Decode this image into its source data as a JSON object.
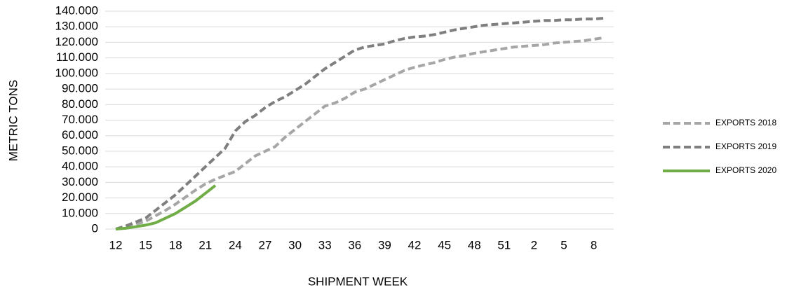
{
  "chart_data": {
    "type": "line",
    "x_label": "SHIPMENT WEEK",
    "y_label": "METRIC TONS",
    "categories": [
      "12",
      null,
      null,
      "15",
      null,
      null,
      "18",
      null,
      null,
      "21",
      null,
      null,
      "24",
      null,
      null,
      "27",
      null,
      null,
      "30",
      null,
      null,
      "33",
      null,
      null,
      "36",
      null,
      null,
      "39",
      null,
      null,
      "42",
      null,
      null,
      "45",
      null,
      null,
      "48",
      null,
      null,
      "51",
      null,
      null,
      "2",
      null,
      null,
      "5",
      null,
      null,
      "8",
      null
    ],
    "series": [
      {
        "name": "EXPORTS 2018",
        "color": "#a6a6a6",
        "dashed": true,
        "values": [
          0,
          1500,
          3000,
          5000,
          8500,
          12000,
          16000,
          20500,
          25000,
          29000,
          32000,
          34500,
          37000,
          42000,
          47000,
          50000,
          53000,
          59000,
          64000,
          69000,
          74000,
          79000,
          81000,
          84000,
          88000,
          90000,
          93000,
          96000,
          99000,
          102000,
          104000,
          105500,
          107000,
          109000,
          110500,
          111500,
          113000,
          114000,
          115000,
          116000,
          117000,
          117500,
          118000,
          118500,
          119500,
          120000,
          120500,
          121000,
          122000,
          123000
        ]
      },
      {
        "name": "EXPORTS 2019",
        "color": "#7f7f7f",
        "dashed": true,
        "values": [
          0,
          2000,
          4500,
          7000,
          12000,
          17000,
          22000,
          28000,
          34000,
          40000,
          46000,
          52000,
          63000,
          69000,
          73000,
          78000,
          82000,
          85000,
          89000,
          93000,
          98000,
          103000,
          107000,
          111000,
          115000,
          117000,
          118000,
          119000,
          121000,
          122500,
          123500,
          124000,
          125000,
          126500,
          128000,
          129000,
          130000,
          131000,
          131500,
          132000,
          132500,
          133000,
          133500,
          134000,
          134000,
          134500,
          134500,
          135000,
          135000,
          135500
        ]
      },
      {
        "name": "EXPORTS 2020",
        "color": "#70ad47",
        "dashed": false,
        "values": [
          0,
          500,
          1500,
          2500,
          4000,
          7000,
          10000,
          14000,
          18000,
          23000,
          28000,
          null,
          null,
          null,
          null,
          null,
          null,
          null,
          null,
          null,
          null,
          null,
          null,
          null,
          null,
          null,
          null,
          null,
          null,
          null,
          null,
          null,
          null,
          null,
          null,
          null,
          null,
          null,
          null,
          null,
          null,
          null,
          null,
          null,
          null,
          null,
          null,
          null,
          null,
          null
        ]
      }
    ],
    "ylim": [
      0,
      140000
    ],
    "yticks": [
      0,
      {
        "value": 10000,
        "label": "10.000"
      },
      {
        "value": 20000,
        "label": "20.000"
      },
      {
        "value": 30000,
        "label": "30.000"
      },
      {
        "value": 40000,
        "label": "40.000"
      },
      {
        "value": 50000,
        "label": "50.000"
      },
      {
        "value": 60000,
        "label": "60.000"
      },
      {
        "value": 70000,
        "label": "70.000"
      },
      {
        "value": 80000,
        "label": "80.000"
      },
      {
        "value": 90000,
        "label": "90.000"
      },
      {
        "value": 100000,
        "label": "100.000"
      },
      {
        "value": 110000,
        "label": "110.000"
      },
      {
        "value": 120000,
        "label": "120.000"
      },
      {
        "value": 130000,
        "label": "130.000"
      },
      {
        "value": 140000,
        "label": "140.000"
      }
    ],
    "grid": true,
    "legend": "right"
  }
}
